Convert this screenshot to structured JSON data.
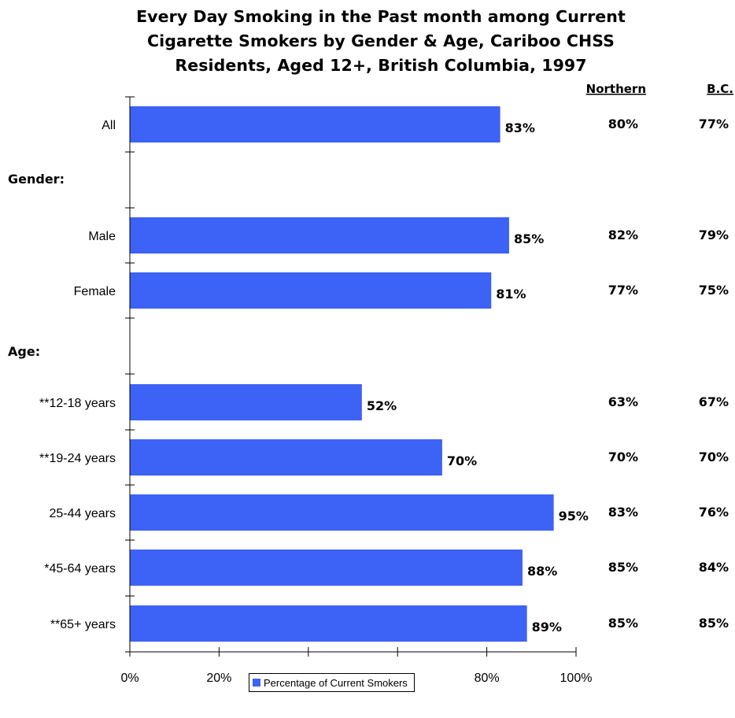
{
  "chart_data": {
    "type": "bar",
    "orientation": "horizontal",
    "title": "Every Day Smoking in the Past month among Current\nCigarette Smokers by Gender & Age, Cariboo CHSS\nResidents, Aged 12+, British Columbia, 1997",
    "categories": [
      "All",
      "Male",
      "Female",
      "**12-18 years",
      "**19-24 years",
      "25-44 years",
      "*45-64 years",
      "**65+ years"
    ],
    "group_labels": [
      "Gender:",
      "Age:"
    ],
    "series": [
      {
        "name": "Percentage of Current Smokers",
        "values": [
          83,
          85,
          81,
          52,
          70,
          95,
          88,
          89
        ],
        "color": "#3d62f6"
      }
    ],
    "data_labels": [
      "83%",
      "85%",
      "81%",
      "52%",
      "70%",
      "95%",
      "88%",
      "89%"
    ],
    "comparison_columns": [
      {
        "header": "Northern",
        "values": [
          "80%",
          "82%",
          "77%",
          "63%",
          "70%",
          "83%",
          "85%",
          "85%"
        ]
      },
      {
        "header": "B.C.",
        "values": [
          "77%",
          "79%",
          "75%",
          "67%",
          "70%",
          "76%",
          "84%",
          "85%"
        ]
      }
    ],
    "xlim": [
      0,
      100
    ],
    "xticks": [
      "0%",
      "20%",
      "40%",
      "60%",
      "80%",
      "100%"
    ],
    "xlabel": "",
    "ylabel": "",
    "grid": false,
    "legend_position": "bottom"
  }
}
